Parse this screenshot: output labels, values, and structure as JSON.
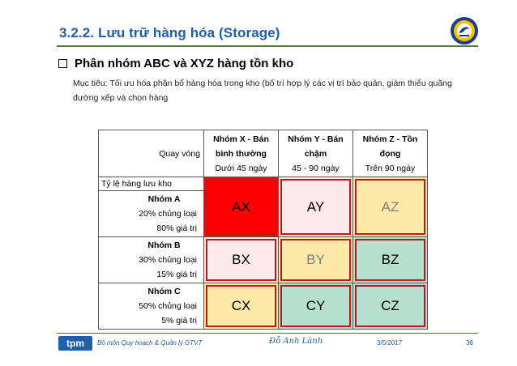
{
  "slide": {
    "title": "3.2.2. Lưu trữ hàng hóa (Storage)",
    "bullet": "Phân nhóm ABC và XYZ hàng tồn kho",
    "goal": "Mục tiêu: Tối ưu hóa phân bổ hàng hóa trong kho (bố trí hợp lý các vị trí bảo quản, giảm thiểu quãng đường xếp và chọn hàng"
  },
  "table": {
    "corner_label": "Quay vòng",
    "row_axis_label": "Tỷ lệ hàng lưu kho",
    "columns": [
      {
        "line1": "Nhóm X - Bán",
        "line2": "bình thường",
        "line3": "Dưới 45 ngày"
      },
      {
        "line1": "Nhóm Y - Bán",
        "line2": "chậm",
        "line3": "45 - 90  ngày"
      },
      {
        "line1": "Nhóm Z - Tồn",
        "line2": "đọng",
        "line3": "Trên 90 ngày"
      }
    ],
    "rows": [
      {
        "name": "Nhóm A",
        "share": "20% chủng loại",
        "value": "80% giá trị",
        "cells": [
          "AX",
          "AY",
          "AZ"
        ]
      },
      {
        "name": "Nhóm B",
        "share": "30% chủng loại",
        "value": "15% giá trị",
        "cells": [
          "BX",
          "BY",
          "BZ"
        ]
      },
      {
        "name": "Nhóm C",
        "share": "50% chủng loại",
        "value": "5% giá trị",
        "cells": [
          "CX",
          "CY",
          "CZ"
        ]
      }
    ],
    "cell_colors": {
      "AX": "#ff0000",
      "AY": "#fde9ec",
      "AZ": "#fde9a9",
      "BX": "#fde9ec",
      "BY": "#fde9a9",
      "BZ": "#b7dfd0",
      "CX": "#fde9a9",
      "CY": "#b7dfd0",
      "CZ": "#b7dfd0"
    },
    "cell_text_colors": {
      "AX": "#000000",
      "AY": "#000000",
      "AZ": "#7f7f7f",
      "BX": "#000000",
      "BY": "#7f7f7f",
      "BZ": "#000000",
      "CX": "#000000",
      "CY": "#000000",
      "CZ": "#000000"
    }
  },
  "footer": {
    "logo_text": "tpm",
    "department": "Bộ môn Quy hoạch & Quản lý GTVT",
    "signature": "Đỗ Anh Lành",
    "date": "3/5/2017",
    "page": "36"
  },
  "colors": {
    "title": "#1f5fa8",
    "rule": "#4a7a2e",
    "cell_border": "#b71c1c"
  }
}
